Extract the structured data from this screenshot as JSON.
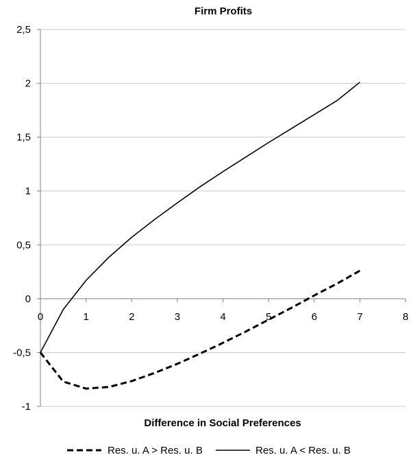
{
  "chart_data": {
    "type": "line",
    "title": "Firm Profits",
    "xlabel": "Difference in Social Preferences",
    "ylabel": "",
    "xlim": [
      0,
      8
    ],
    "ylim": [
      -1,
      2.5
    ],
    "x_ticks": [
      "0",
      "1",
      "2",
      "3",
      "4",
      "5",
      "6",
      "7",
      "8"
    ],
    "y_ticks": [
      "-1",
      "-0,5",
      "0",
      "0,5",
      "1",
      "1,5",
      "2",
      "2,5"
    ],
    "grid": "horizontal",
    "legend_position": "bottom",
    "series": [
      {
        "name": "Res. u. A > Res. u. B",
        "style": "dashed",
        "color": "#000000",
        "x": [
          0,
          0.5,
          1,
          1.5,
          2,
          2.5,
          3,
          3.5,
          4,
          4.5,
          5,
          5.5,
          6,
          6.5,
          7
        ],
        "y": [
          -0.5,
          -0.77,
          -0.835,
          -0.82,
          -0.765,
          -0.69,
          -0.605,
          -0.51,
          -0.41,
          -0.305,
          -0.195,
          -0.085,
          0.03,
          0.14,
          0.26
        ]
      },
      {
        "name": "Res. u. A < Res. u. B",
        "style": "solid",
        "color": "#000000",
        "x": [
          0,
          0.5,
          1,
          1.5,
          2,
          2.5,
          3,
          3.5,
          4,
          4.5,
          5,
          5.5,
          6,
          6.5,
          7
        ],
        "y": [
          -0.5,
          -0.1,
          0.17,
          0.385,
          0.57,
          0.735,
          0.89,
          1.04,
          1.18,
          1.315,
          1.45,
          1.58,
          1.71,
          1.84,
          2.01
        ]
      }
    ]
  }
}
